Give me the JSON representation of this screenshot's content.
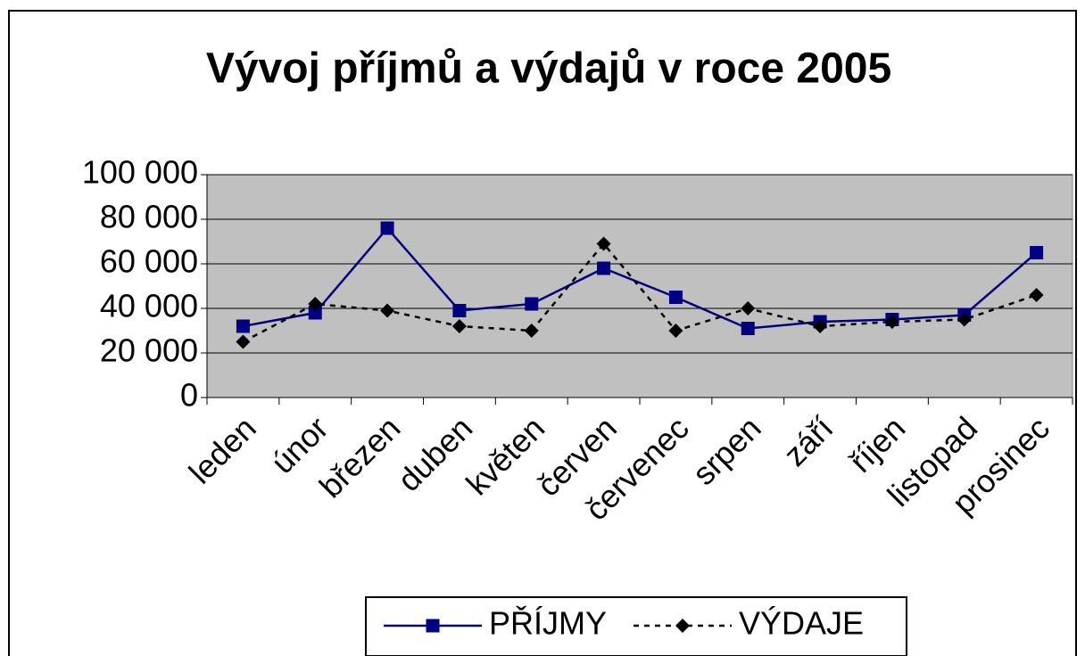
{
  "chart_data": {
    "type": "line",
    "title": "Vývoj příjmů a výdajů v roce 2005",
    "categories": [
      "leden",
      "únor",
      "březen",
      "duben",
      "květen",
      "červen",
      "červenec",
      "srpen",
      "září",
      "říjen",
      "listopad",
      "prosinec"
    ],
    "series": [
      {
        "name": "PŘÍJMY",
        "color": "#000080",
        "dash": "solid",
        "marker": "square",
        "values": [
          32000,
          38000,
          76000,
          39000,
          42000,
          58000,
          45000,
          31000,
          34000,
          35000,
          37000,
          65000
        ]
      },
      {
        "name": "VÝDAJE",
        "color": "#000000",
        "dash": "dotted",
        "marker": "diamond",
        "values": [
          25000,
          42000,
          39000,
          32000,
          30000,
          69000,
          30000,
          40000,
          32000,
          34000,
          35000,
          46000
        ]
      }
    ],
    "ylim": [
      0,
      100000
    ],
    "yticks": [
      0,
      {
        "value": 20000,
        "label": "20 000"
      },
      {
        "value": 40000,
        "label": "40 000"
      },
      {
        "value": 60000,
        "label": "60 000"
      },
      {
        "value": 80000,
        "label": "80 000"
      },
      {
        "value": 100000,
        "label": "100 000"
      }
    ],
    "grid": true,
    "legend": "bottom"
  }
}
